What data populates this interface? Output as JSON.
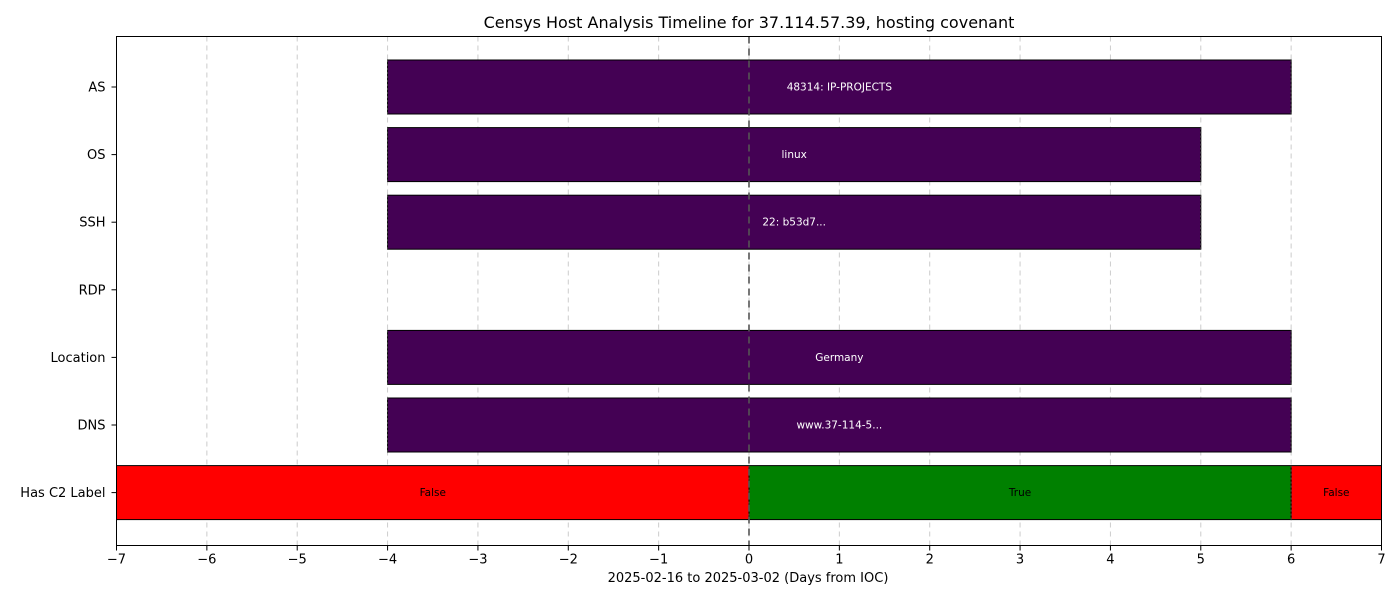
{
  "chart_data": {
    "type": "timeline",
    "title": "Censys Host Analysis Timeline for 37.114.57.39, hosting covenant",
    "xlabel": "2025-02-16 to 2025-03-02 (Days from IOC)",
    "ylabel": "",
    "xlim": [
      -7,
      7
    ],
    "xticks": [
      -7,
      -6,
      -5,
      -4,
      -3,
      -2,
      -1,
      0,
      1,
      2,
      3,
      4,
      5,
      6,
      7
    ],
    "ioc_marker_x": 0,
    "grid": "vertical dashed",
    "rows": [
      {
        "label": "AS",
        "segments": [
          {
            "start": -4,
            "end": 6,
            "text": "48314: IP-PROJECTS",
            "color": "#440154",
            "text_color": "#ffffff"
          }
        ]
      },
      {
        "label": "OS",
        "segments": [
          {
            "start": -4,
            "end": 5,
            "text": "linux",
            "color": "#440154",
            "text_color": "#ffffff"
          }
        ]
      },
      {
        "label": "SSH",
        "segments": [
          {
            "start": -4,
            "end": 5,
            "text": "22: b53d7...",
            "color": "#440154",
            "text_color": "#ffffff"
          }
        ]
      },
      {
        "label": "RDP",
        "segments": []
      },
      {
        "label": "Location",
        "segments": [
          {
            "start": -4,
            "end": 6,
            "text": "Germany",
            "color": "#440154",
            "text_color": "#ffffff"
          }
        ]
      },
      {
        "label": "DNS",
        "segments": [
          {
            "start": -4,
            "end": 6,
            "text": "www.37-114-5...",
            "color": "#440154",
            "text_color": "#ffffff"
          }
        ]
      },
      {
        "label": "Has C2 Label",
        "segments": [
          {
            "start": -7,
            "end": 0,
            "text": "False",
            "color": "#ff0000",
            "text_color": "#000000"
          },
          {
            "start": 0,
            "end": 6,
            "text": "True",
            "color": "#008000",
            "text_color": "#000000"
          },
          {
            "start": 6,
            "end": 7,
            "text": "False",
            "color": "#ff0000",
            "text_color": "#000000"
          }
        ]
      }
    ]
  }
}
